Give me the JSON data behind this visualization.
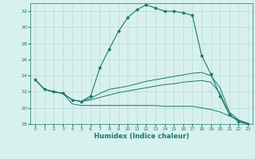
{
  "xlabel": "Humidex (Indice chaleur)",
  "x_values": [
    0,
    1,
    2,
    3,
    4,
    5,
    6,
    7,
    8,
    9,
    10,
    11,
    12,
    13,
    14,
    15,
    16,
    17,
    18,
    19,
    20,
    21,
    22,
    23
  ],
  "curve1_y": [
    23.5,
    22.3,
    22.0,
    21.8,
    21.0,
    20.8,
    21.5,
    25.0,
    27.3,
    29.5,
    31.2,
    32.2,
    32.8,
    32.4,
    32.0,
    32.0,
    31.8,
    31.5,
    26.5,
    24.2,
    21.5,
    19.2,
    18.3,
    18.0
  ],
  "curve2_y": [
    23.5,
    22.3,
    22.0,
    21.8,
    21.0,
    20.8,
    21.2,
    21.8,
    22.3,
    22.5,
    22.7,
    23.0,
    23.3,
    23.5,
    23.7,
    23.9,
    24.1,
    24.3,
    24.4,
    24.0,
    22.5,
    19.5,
    18.5,
    18.0
  ],
  "curve3_y": [
    23.5,
    22.3,
    22.0,
    21.8,
    21.0,
    20.8,
    21.0,
    21.3,
    21.6,
    21.9,
    22.1,
    22.3,
    22.5,
    22.7,
    22.9,
    23.0,
    23.2,
    23.3,
    23.4,
    23.2,
    21.8,
    19.2,
    18.3,
    18.0
  ],
  "curve4_y": [
    23.5,
    22.3,
    22.0,
    21.8,
    20.5,
    20.3,
    20.3,
    20.3,
    20.3,
    20.3,
    20.3,
    20.3,
    20.3,
    20.3,
    20.2,
    20.2,
    20.2,
    20.2,
    20.0,
    19.8,
    19.5,
    19.0,
    18.5,
    18.1
  ],
  "line_color": "#1a7a6e",
  "bg_color": "#d8f0ee",
  "grid_color": "#b8dcd8",
  "ylim": [
    18,
    33
  ],
  "xlim": [
    -0.5,
    23.5
  ],
  "yticks": [
    18,
    20,
    22,
    24,
    26,
    28,
    30,
    32
  ],
  "xticks": [
    0,
    1,
    2,
    3,
    4,
    5,
    6,
    7,
    8,
    9,
    10,
    11,
    12,
    13,
    14,
    15,
    16,
    17,
    18,
    19,
    20,
    21,
    22,
    23
  ]
}
